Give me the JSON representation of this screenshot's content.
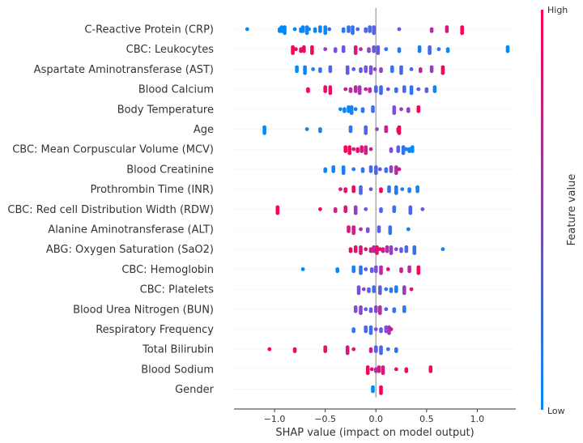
{
  "chart_data": {
    "type": "scatter",
    "subtype": "shap-beeswarm-summary",
    "xlabel": "SHAP value (impact on model output)",
    "xlim": [
      -1.4,
      1.38
    ],
    "xticks": [
      -1.0,
      -0.5,
      0.0,
      0.5,
      1.0
    ],
    "xtick_labels": [
      "−1.0",
      "−0.5",
      "0.0",
      "0.5",
      "1.0"
    ],
    "grid": false,
    "colorbar": {
      "label": "Feature value",
      "high": "High",
      "low": "Low",
      "low_color": "#008bfb",
      "high_color": "#ff0052"
    },
    "features": [
      {
        "name": "C-Reactive Protein (CRP)",
        "points": [
          [
            -1.27,
            0.0
          ],
          [
            -0.95,
            0.0
          ],
          [
            -0.93,
            0.0
          ],
          [
            -0.9,
            0.0
          ],
          [
            -0.8,
            0.0
          ],
          [
            -0.74,
            0.15
          ],
          [
            -0.72,
            0.0
          ],
          [
            -0.68,
            0.1
          ],
          [
            -0.66,
            0.0
          ],
          [
            -0.6,
            0.0
          ],
          [
            -0.55,
            0.1
          ],
          [
            -0.5,
            0.0
          ],
          [
            -0.46,
            0.15
          ],
          [
            -0.32,
            0.15
          ],
          [
            -0.27,
            0.25
          ],
          [
            -0.23,
            0.2
          ],
          [
            -0.18,
            0.25
          ],
          [
            -0.1,
            0.3
          ],
          [
            -0.06,
            0.3
          ],
          [
            -0.02,
            0.35
          ],
          [
            0.23,
            0.5
          ],
          [
            0.55,
            0.7
          ],
          [
            0.7,
            0.85
          ],
          [
            0.85,
            1.0
          ]
        ]
      },
      {
        "name": "CBC: Leukocytes",
        "points": [
          [
            -0.82,
            1.0
          ],
          [
            -0.79,
            0.95
          ],
          [
            -0.74,
            0.9
          ],
          [
            -0.71,
            0.92
          ],
          [
            -0.63,
            0.95
          ],
          [
            -0.5,
            0.6
          ],
          [
            -0.4,
            0.5
          ],
          [
            -0.32,
            0.4
          ],
          [
            -0.2,
            0.85
          ],
          [
            -0.15,
            0.7
          ],
          [
            -0.07,
            0.55
          ],
          [
            -0.02,
            0.45
          ],
          [
            0.02,
            0.4
          ],
          [
            0.1,
            0.2
          ],
          [
            0.23,
            0.15
          ],
          [
            0.43,
            0.1
          ],
          [
            0.53,
            0.3
          ],
          [
            0.62,
            0.2
          ],
          [
            0.71,
            0.0
          ],
          [
            1.3,
            0.0
          ]
        ]
      },
      {
        "name": "Aspartate Aminotransferase (AST)",
        "points": [
          [
            -0.78,
            0.0
          ],
          [
            -0.7,
            0.05
          ],
          [
            -0.62,
            0.1
          ],
          [
            -0.55,
            0.2
          ],
          [
            -0.45,
            0.3
          ],
          [
            -0.28,
            0.4
          ],
          [
            -0.22,
            0.3
          ],
          [
            -0.15,
            0.4
          ],
          [
            -0.1,
            0.45
          ],
          [
            -0.05,
            0.5
          ],
          [
            -0.01,
            0.55
          ],
          [
            0.05,
            0.6
          ],
          [
            0.16,
            0.2
          ],
          [
            0.25,
            0.3
          ],
          [
            0.35,
            0.3
          ],
          [
            0.44,
            0.75
          ],
          [
            0.55,
            0.6
          ],
          [
            0.66,
            0.95
          ]
        ]
      },
      {
        "name": "Blood Calcium",
        "points": [
          [
            -0.67,
            1.0
          ],
          [
            -0.5,
            0.95
          ],
          [
            -0.45,
            0.9
          ],
          [
            -0.3,
            0.8
          ],
          [
            -0.25,
            0.7
          ],
          [
            -0.2,
            0.75
          ],
          [
            -0.16,
            0.65
          ],
          [
            -0.1,
            0.8
          ],
          [
            -0.06,
            0.7
          ],
          [
            0.0,
            0.35
          ],
          [
            0.05,
            0.3
          ],
          [
            0.12,
            0.5
          ],
          [
            0.2,
            0.25
          ],
          [
            0.28,
            0.3
          ],
          [
            0.35,
            0.15
          ],
          [
            0.42,
            0.4
          ],
          [
            0.5,
            0.35
          ],
          [
            0.58,
            0.05
          ]
        ]
      },
      {
        "name": "Body Temperature",
        "points": [
          [
            -0.35,
            0.0
          ],
          [
            -0.31,
            0.05
          ],
          [
            -0.27,
            0.0
          ],
          [
            -0.24,
            0.1
          ],
          [
            -0.2,
            0.1
          ],
          [
            -0.13,
            0.2
          ],
          [
            -0.03,
            0.25
          ],
          [
            0.18,
            0.5
          ],
          [
            0.25,
            0.6
          ],
          [
            0.32,
            0.6
          ],
          [
            0.42,
            1.0
          ]
        ]
      },
      {
        "name": "Age",
        "points": [
          [
            -1.1,
            0.0
          ],
          [
            -0.68,
            0.05
          ],
          [
            -0.55,
            0.1
          ],
          [
            -0.25,
            0.2
          ],
          [
            -0.1,
            0.3
          ],
          [
            0.01,
            0.5
          ],
          [
            0.22,
            0.85
          ],
          [
            0.1,
            0.8
          ],
          [
            0.23,
            1.0
          ]
        ]
      },
      {
        "name": "CBC: Mean Corpuscular Volume (MCV)",
        "points": [
          [
            -0.3,
            1.0
          ],
          [
            -0.26,
            0.95
          ],
          [
            -0.22,
            0.9
          ],
          [
            -0.18,
            0.9
          ],
          [
            -0.14,
            0.85
          ],
          [
            -0.1,
            0.8
          ],
          [
            -0.05,
            0.75
          ],
          [
            0.15,
            0.5
          ],
          [
            0.22,
            0.35
          ],
          [
            0.27,
            0.2
          ],
          [
            0.3,
            0.15
          ],
          [
            0.33,
            0.1
          ],
          [
            0.36,
            0.0
          ]
        ]
      },
      {
        "name": "Blood Creatinine",
        "points": [
          [
            -0.5,
            0.0
          ],
          [
            -0.42,
            0.05
          ],
          [
            -0.32,
            0.1
          ],
          [
            -0.22,
            0.15
          ],
          [
            -0.13,
            0.2
          ],
          [
            -0.05,
            0.25
          ],
          [
            0.0,
            0.3
          ],
          [
            0.04,
            0.45
          ],
          [
            0.1,
            0.2
          ],
          [
            0.15,
            0.6
          ],
          [
            0.2,
            0.7
          ],
          [
            0.23,
            0.8
          ]
        ]
      },
      {
        "name": "Prothrombin Time (INR)",
        "points": [
          [
            -0.35,
            0.8
          ],
          [
            -0.3,
            0.9
          ],
          [
            -0.22,
            0.95
          ],
          [
            -0.15,
            0.3
          ],
          [
            -0.05,
            0.5
          ],
          [
            0.05,
            1.0
          ],
          [
            0.13,
            0.2
          ],
          [
            0.2,
            0.15
          ],
          [
            0.26,
            0.1
          ],
          [
            0.33,
            0.1
          ],
          [
            0.41,
            0.05
          ]
        ]
      },
      {
        "name": "CBC: Red cell Distribution Width (RDW)",
        "points": [
          [
            -0.97,
            1.0
          ],
          [
            -0.55,
            0.95
          ],
          [
            -0.4,
            0.8
          ],
          [
            -0.3,
            0.85
          ],
          [
            -0.2,
            0.6
          ],
          [
            -0.1,
            0.5
          ],
          [
            0.05,
            0.3
          ],
          [
            0.18,
            0.25
          ],
          [
            0.34,
            0.3
          ],
          [
            0.46,
            0.4
          ]
        ]
      },
      {
        "name": "Alanine Aminotransferase (ALT)",
        "points": [
          [
            -0.27,
            0.85
          ],
          [
            -0.22,
            0.8
          ],
          [
            -0.15,
            0.7
          ],
          [
            -0.08,
            0.5
          ],
          [
            0.03,
            0.35
          ],
          [
            0.14,
            0.2
          ],
          [
            0.32,
            0.1
          ]
        ]
      },
      {
        "name": "ABG: Oxygen Saturation (SaO2)",
        "points": [
          [
            -0.25,
            0.95
          ],
          [
            -0.2,
            0.9
          ],
          [
            -0.15,
            0.85
          ],
          [
            -0.1,
            0.9
          ],
          [
            -0.05,
            0.8
          ],
          [
            -0.02,
            0.75
          ],
          [
            0.01,
            0.9
          ],
          [
            0.04,
            0.95
          ],
          [
            0.07,
            0.8
          ],
          [
            0.11,
            0.7
          ],
          [
            0.15,
            0.6
          ],
          [
            0.2,
            0.5
          ],
          [
            0.25,
            0.4
          ],
          [
            0.3,
            0.3
          ],
          [
            0.38,
            0.2
          ],
          [
            0.66,
            0.05
          ]
        ]
      },
      {
        "name": "CBC: Hemoglobin",
        "points": [
          [
            -0.72,
            0.0
          ],
          [
            -0.38,
            0.05
          ],
          [
            -0.22,
            0.1
          ],
          [
            -0.15,
            0.2
          ],
          [
            -0.1,
            0.3
          ],
          [
            -0.04,
            0.35
          ],
          [
            0.0,
            0.5
          ],
          [
            0.05,
            0.7
          ],
          [
            0.12,
            0.9
          ],
          [
            0.25,
            0.8
          ],
          [
            0.33,
            0.75
          ],
          [
            0.42,
            0.95
          ]
        ]
      },
      {
        "name": "CBC: Platelets",
        "points": [
          [
            -0.17,
            0.5
          ],
          [
            -0.12,
            0.55
          ],
          [
            -0.07,
            0.3
          ],
          [
            -0.02,
            0.25
          ],
          [
            0.04,
            0.4
          ],
          [
            0.1,
            0.2
          ],
          [
            0.15,
            0.15
          ],
          [
            0.2,
            0.1
          ],
          [
            0.28,
            0.6
          ],
          [
            0.35,
            0.9
          ]
        ]
      },
      {
        "name": "Blood Urea Nitrogen (BUN)",
        "points": [
          [
            -0.2,
            0.5
          ],
          [
            -0.15,
            0.55
          ],
          [
            -0.1,
            0.45
          ],
          [
            -0.05,
            0.35
          ],
          [
            0.0,
            0.6
          ],
          [
            0.04,
            0.7
          ],
          [
            0.1,
            0.4
          ],
          [
            0.18,
            0.2
          ],
          [
            0.28,
            0.15
          ]
        ]
      },
      {
        "name": "Respiratory Frequency",
        "points": [
          [
            -0.22,
            0.2
          ],
          [
            -0.1,
            0.3
          ],
          [
            -0.05,
            0.25
          ],
          [
            0.0,
            0.5
          ],
          [
            0.05,
            0.4
          ],
          [
            0.1,
            0.5
          ],
          [
            0.13,
            0.6
          ],
          [
            0.15,
            0.85
          ]
        ]
      },
      {
        "name": "Total Bilirubin",
        "points": [
          [
            -1.05,
            1.0
          ],
          [
            -0.8,
            0.95
          ],
          [
            -0.5,
            0.9
          ],
          [
            -0.28,
            0.85
          ],
          [
            -0.22,
            0.9
          ],
          [
            -0.05,
            0.8
          ],
          [
            0.0,
            0.4
          ],
          [
            0.05,
            0.3
          ],
          [
            0.12,
            0.2
          ],
          [
            0.2,
            0.15
          ]
        ]
      },
      {
        "name": "Blood Sodium",
        "points": [
          [
            -0.08,
            0.95
          ],
          [
            -0.04,
            0.9
          ],
          [
            0.0,
            0.7
          ],
          [
            0.03,
            0.85
          ],
          [
            0.07,
            0.85
          ],
          [
            0.2,
            0.9
          ],
          [
            0.3,
            0.95
          ],
          [
            0.54,
            0.95
          ]
        ]
      },
      {
        "name": "Gender",
        "points": [
          [
            -0.03,
            0.0
          ],
          [
            0.05,
            1.0
          ]
        ]
      }
    ]
  }
}
